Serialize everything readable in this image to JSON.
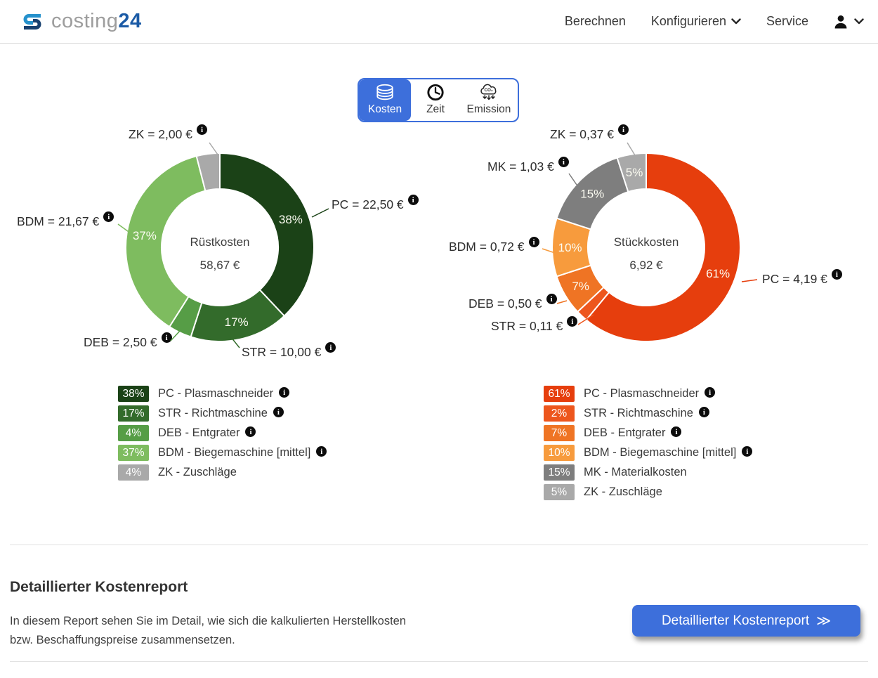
{
  "navbar": {
    "logo": {
      "gray": "costing",
      "blue": "24"
    },
    "items": [
      {
        "label": "Berechnen",
        "caret": false
      },
      {
        "label": "Konfigurieren",
        "caret": true
      },
      {
        "label": "Service",
        "caret": false
      }
    ],
    "user_menu": {
      "icon": "user-icon",
      "caret": true
    }
  },
  "tabs": [
    {
      "label": "Kosten",
      "icon": "coins-icon",
      "selected": true
    },
    {
      "label": "Zeit",
      "icon": "clock-icon",
      "selected": false
    },
    {
      "label": "Emission",
      "icon": "co2-emission-icon",
      "selected": false
    }
  ],
  "chart_data": [
    {
      "type": "donut",
      "title": "Rüstkosten",
      "total": "58,67 €",
      "slices": [
        {
          "code": "PC",
          "legend_name": "PC - Plasmaschneider",
          "pct": 38,
          "pct_label": "38%",
          "value": "22,50 €",
          "outer_label": "PC = 22,50 €",
          "color": "#1b4217",
          "legend_info": true
        },
        {
          "code": "STR",
          "legend_name": "STR - Richtmaschine",
          "pct": 17,
          "pct_label": "17%",
          "value": "10,00 €",
          "outer_label": "STR = 10,00 €",
          "color": "#336b2b",
          "legend_info": true
        },
        {
          "code": "DEB",
          "legend_name": "DEB - Entgrater",
          "pct": 4,
          "pct_label": "4%",
          "value": "2,50 €",
          "outer_label": "DEB = 2,50 €",
          "color": "#569d46",
          "legend_info": true
        },
        {
          "code": "BDM",
          "legend_name": "BDM - Biegemaschine [mittel]",
          "pct": 37,
          "pct_label": "37%",
          "value": "21,67 €",
          "outer_label": "BDM = 21,67 €",
          "color": "#7ebc5f",
          "legend_info": true
        },
        {
          "code": "ZK",
          "legend_name": "ZK - Zuschläge",
          "pct": 4,
          "pct_label": "4%",
          "value": "2,00 €",
          "outer_label": "ZK = 2,00 €",
          "color": "#a9a9a9",
          "legend_info": false
        }
      ]
    },
    {
      "type": "donut",
      "title": "Stückkosten",
      "total": "6,92 €",
      "slices": [
        {
          "code": "PC",
          "legend_name": "PC - Plasmaschneider",
          "pct": 61,
          "pct_label": "61%",
          "value": "4,19 €",
          "outer_label": "PC = 4,19 €",
          "color": "#e63e0d",
          "legend_info": true
        },
        {
          "code": "STR",
          "legend_name": "STR - Richtmaschine",
          "pct": 2,
          "pct_label": "2%",
          "value": "0,11 €",
          "outer_label": "STR = 0,11 €",
          "color": "#ed561d",
          "legend_info": true
        },
        {
          "code": "DEB",
          "legend_name": "DEB - Entgrater",
          "pct": 7,
          "pct_label": "7%",
          "value": "0,50 €",
          "outer_label": "DEB = 0,50 €",
          "color": "#ef7424",
          "legend_info": true
        },
        {
          "code": "BDM",
          "legend_name": "BDM - Biegemaschine [mittel]",
          "pct": 10,
          "pct_label": "10%",
          "value": "0,72 €",
          "outer_label": "BDM = 0,72 €",
          "color": "#f79b3d",
          "legend_info": true
        },
        {
          "code": "MK",
          "legend_name": "MK - Materialkosten",
          "pct": 15,
          "pct_label": "15%",
          "value": "1,03 €",
          "outer_label": "MK = 1,03 €",
          "color": "#7e7e7e",
          "legend_info": false
        },
        {
          "code": "ZK",
          "legend_name": "ZK - Zuschläge",
          "pct": 5,
          "pct_label": "5%",
          "value": "0,37 €",
          "outer_label": "ZK = 0,37 €",
          "color": "#a9a9a9",
          "legend_info": false
        }
      ]
    }
  ],
  "report": {
    "heading": "Detaillierter Kostenreport",
    "body": "In diesem Report sehen Sie im Detail, wie sich die kalkulierten Herstellkosten bzw. Beschaffungspreise zusammensetzen.",
    "button_label": "Detaillierter Kostenreport",
    "button_arrow": "≫"
  },
  "colors": {
    "accent_blue": "#3d6fdb",
    "navy_logo": "#1c5ba6",
    "info_icon": "#0c0c0c"
  }
}
